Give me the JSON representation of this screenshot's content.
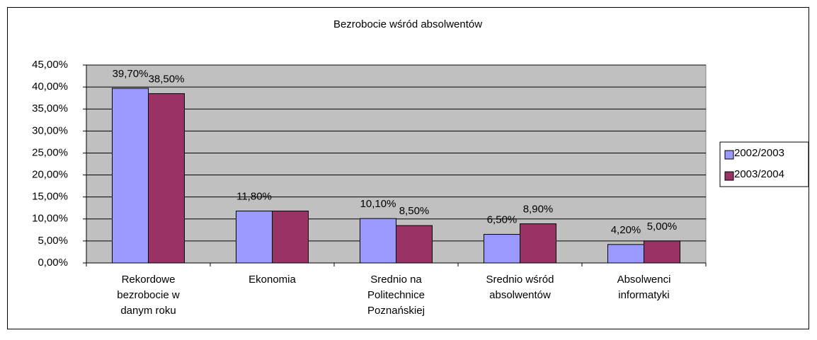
{
  "chart_data": {
    "type": "bar",
    "title": "Bezrobocie wśród absolwentów",
    "categories": [
      [
        "Rekordowe",
        "bezrobocie w",
        "danym roku"
      ],
      [
        "Ekonomia"
      ],
      [
        "Srednio na",
        "Politechnice",
        "Poznańskiej"
      ],
      [
        "Srednio wśród",
        "absolwentów"
      ],
      [
        "Absolwenci",
        "informatyki"
      ]
    ],
    "series": [
      {
        "name": "2002/2003",
        "color": "#9999ff",
        "values": [
          39.7,
          11.8,
          10.1,
          6.5,
          4.2
        ],
        "value_labels": [
          "39,70%",
          "11,80%",
          "10,10%",
          "6,50%",
          "4,20%"
        ]
      },
      {
        "name": "2003/2004",
        "color": "#993366",
        "values": [
          38.5,
          11.8,
          8.5,
          8.9,
          5.0
        ],
        "value_labels": [
          "38,50%",
          null,
          "8,50%",
          "8,90%",
          "5,00%"
        ]
      }
    ],
    "ylim": [
      0,
      45
    ],
    "yticks": [
      {
        "value": 0,
        "label": "0,00%"
      },
      {
        "value": 5,
        "label": "5,00%"
      },
      {
        "value": 10,
        "label": "10,00%"
      },
      {
        "value": 15,
        "label": "15,00%"
      },
      {
        "value": 20,
        "label": "20,00%"
      },
      {
        "value": 25,
        "label": "25,00%"
      },
      {
        "value": 30,
        "label": "30,00%"
      },
      {
        "value": 35,
        "label": "35,00%"
      },
      {
        "value": 40,
        "label": "40,00%"
      },
      {
        "value": 45,
        "label": "45,00%"
      }
    ],
    "grid": true,
    "legend": "right",
    "plot_background": "#c0c0c0"
  }
}
